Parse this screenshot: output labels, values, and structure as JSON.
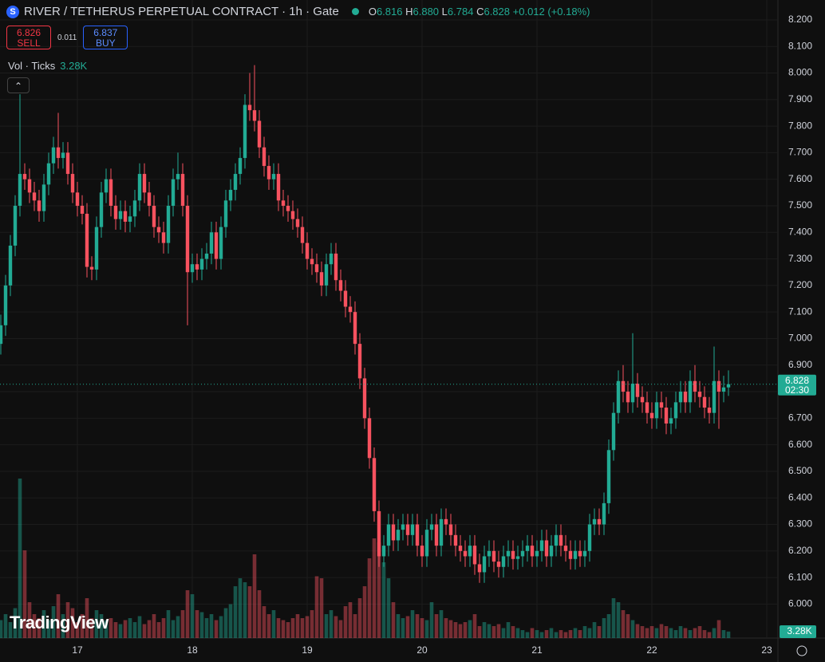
{
  "header": {
    "symbol_icon": "S",
    "symbol": "RIVER / TETHERUS PERPETUAL CONTRACT · 1h · Gate",
    "o_label": "O",
    "h_label": "H",
    "high": "6.880",
    "l_label": "L",
    "c_label": "C",
    "change": "+0.012 (+0.18%)",
    "sell_price": "6.826",
    "sell": "SELL",
    "spread": "0.011",
    "buy_price": "6.837",
    "buy": "BUY",
    "vol_title": "Vol · Ticks",
    "countdown": "02:30",
    "logo": "TradingView"
  },
  "chart_data": {
    "type": "candlestick",
    "categories": [
      null,
      null,
      null,
      null,
      null,
      null,
      null,
      null,
      null,
      null,
      null,
      null,
      null,
      null,
      null,
      null,
      "17",
      null,
      null,
      null,
      null,
      null,
      null,
      null,
      null,
      null,
      null,
      null,
      null,
      null,
      null,
      null,
      null,
      null,
      null,
      null,
      null,
      null,
      null,
      null,
      "18",
      null,
      null,
      null,
      null,
      null,
      null,
      null,
      null,
      null,
      null,
      null,
      null,
      null,
      null,
      null,
      null,
      null,
      null,
      null,
      null,
      null,
      null,
      null,
      "19",
      null,
      null,
      null,
      null,
      null,
      null,
      null,
      null,
      null,
      null,
      null,
      null,
      null,
      null,
      null,
      null,
      null,
      null,
      null,
      null,
      null,
      null,
      null,
      "20",
      null,
      null,
      null,
      null,
      null,
      null,
      null,
      null,
      null,
      null,
      null,
      null,
      null,
      null,
      null,
      null,
      null,
      null,
      null,
      null,
      null,
      null,
      null,
      "21",
      null,
      null,
      null,
      null,
      null,
      null,
      null,
      null,
      null,
      null,
      null,
      null,
      null,
      null,
      null,
      null,
      null,
      null,
      null,
      null,
      null,
      null,
      null,
      "22",
      null,
      null,
      null,
      null,
      null,
      null,
      null,
      null,
      null,
      null,
      null,
      null,
      null,
      null,
      null,
      null,
      null,
      null,
      null,
      null,
      null,
      null,
      null,
      "23"
    ],
    "open": [
      6.98,
      7.05,
      7.2,
      7.35,
      7.5,
      7.62,
      7.6,
      7.55,
      7.52,
      7.48,
      7.58,
      7.66,
      7.72,
      7.68,
      7.7,
      7.62,
      7.55,
      7.5,
      7.47,
      7.27,
      7.26,
      7.42,
      7.55,
      7.6,
      7.5,
      7.45,
      7.48,
      7.44,
      7.46,
      7.52,
      7.62,
      7.55,
      7.5,
      7.42,
      7.4,
      7.36,
      7.5,
      7.6,
      7.62,
      7.5,
      7.25,
      7.28,
      7.26,
      7.3,
      7.32,
      7.4,
      7.3,
      7.42,
      7.52,
      7.56,
      7.62,
      7.68,
      7.88,
      7.86,
      7.82,
      7.72,
      7.65,
      7.6,
      7.62,
      7.52,
      7.5,
      7.48,
      7.45,
      7.42,
      7.36,
      7.3,
      7.28,
      7.25,
      7.2,
      7.28,
      7.32,
      7.22,
      7.18,
      7.12,
      7.1,
      6.98,
      6.85,
      6.7,
      6.55,
      6.35,
      6.18,
      6.22,
      6.3,
      6.24,
      6.28,
      6.3,
      6.26,
      6.3,
      6.22,
      6.18,
      6.28,
      6.3,
      6.22,
      6.32,
      6.3,
      6.26,
      6.22,
      6.2,
      6.18,
      6.22,
      6.15,
      6.12,
      6.18,
      6.2,
      6.16,
      6.14,
      6.18,
      6.2,
      6.17,
      6.18,
      6.2,
      6.22,
      6.18,
      6.2,
      6.24,
      6.18,
      6.22,
      6.26,
      6.22,
      6.2,
      6.17,
      6.2,
      6.18,
      6.2,
      6.3,
      6.32,
      6.3,
      6.38,
      6.58,
      6.72,
      6.84,
      6.8,
      6.76,
      6.83,
      6.78,
      6.76,
      6.72,
      6.7,
      6.76,
      6.74,
      6.68,
      6.7,
      6.76,
      6.8,
      6.76,
      6.84,
      6.8,
      6.78,
      6.74,
      6.72,
      6.84,
      6.8,
      6.816,
      null,
      null,
      null,
      null,
      null,
      null,
      null,
      null
    ],
    "high": [
      7.09,
      7.24,
      7.39,
      7.54,
      7.92,
      7.66,
      7.64,
      7.59,
      7.56,
      7.62,
      7.7,
      7.76,
      7.85,
      7.74,
      7.74,
      7.66,
      7.59,
      7.54,
      7.51,
      7.31,
      7.46,
      7.59,
      7.64,
      7.64,
      7.54,
      7.52,
      7.52,
      7.5,
      7.56,
      7.66,
      7.66,
      7.59,
      7.54,
      7.46,
      7.44,
      7.54,
      7.64,
      7.7,
      7.66,
      7.54,
      7.32,
      7.32,
      7.34,
      7.36,
      7.44,
      7.44,
      7.46,
      7.56,
      7.6,
      7.66,
      7.72,
      7.92,
      8.0,
      8.03,
      7.86,
      7.76,
      7.69,
      7.66,
      7.66,
      7.56,
      7.54,
      7.52,
      7.49,
      7.46,
      7.4,
      7.34,
      7.32,
      7.29,
      7.32,
      7.36,
      7.36,
      7.26,
      7.22,
      7.16,
      7.14,
      7.02,
      6.89,
      6.74,
      6.59,
      6.39,
      6.26,
      6.34,
      6.34,
      6.32,
      6.34,
      6.34,
      6.34,
      6.34,
      6.26,
      6.32,
      6.34,
      6.34,
      6.36,
      6.36,
      6.34,
      6.3,
      6.26,
      6.24,
      6.26,
      6.26,
      6.19,
      6.22,
      6.24,
      6.24,
      6.2,
      6.22,
      6.24,
      6.24,
      6.22,
      6.24,
      6.26,
      6.26,
      6.24,
      6.28,
      6.28,
      6.26,
      6.3,
      6.3,
      6.26,
      6.24,
      6.24,
      6.24,
      6.24,
      6.34,
      6.36,
      6.36,
      6.42,
      6.62,
      6.76,
      6.88,
      6.9,
      6.84,
      7.02,
      6.87,
      6.82,
      6.8,
      6.76,
      6.8,
      6.8,
      6.78,
      6.74,
      6.8,
      6.84,
      6.84,
      6.88,
      6.9,
      6.84,
      6.82,
      6.78,
      6.97,
      6.88,
      6.86,
      6.88,
      null,
      null,
      null,
      null,
      null,
      null,
      null,
      null
    ],
    "low": [
      6.94,
      7.01,
      7.16,
      7.31,
      7.46,
      7.56,
      7.51,
      7.48,
      7.44,
      7.44,
      7.54,
      7.62,
      7.64,
      7.64,
      7.58,
      7.51,
      7.46,
      7.43,
      7.23,
      7.22,
      7.22,
      7.38,
      7.51,
      7.46,
      7.41,
      7.41,
      7.4,
      7.4,
      7.42,
      7.48,
      7.51,
      7.46,
      7.38,
      7.36,
      7.32,
      7.32,
      7.46,
      7.56,
      7.46,
      7.05,
      7.21,
      7.22,
      7.22,
      7.26,
      7.28,
      7.26,
      7.26,
      7.38,
      7.48,
      7.52,
      7.58,
      7.64,
      7.82,
      7.78,
      7.68,
      7.61,
      7.56,
      7.56,
      7.48,
      7.46,
      7.44,
      7.41,
      7.38,
      7.32,
      7.26,
      7.24,
      7.21,
      7.16,
      7.16,
      7.24,
      7.18,
      7.14,
      7.08,
      7.06,
      6.94,
      6.81,
      6.66,
      6.51,
      6.31,
      6.14,
      6.14,
      6.18,
      6.2,
      6.2,
      6.24,
      6.22,
      6.22,
      6.18,
      6.14,
      6.14,
      6.24,
      6.18,
      6.18,
      6.26,
      6.22,
      6.18,
      6.16,
      6.14,
      6.14,
      6.11,
      6.08,
      6.08,
      6.14,
      6.12,
      6.1,
      6.1,
      6.14,
      6.13,
      6.13,
      6.14,
      6.16,
      6.14,
      6.14,
      6.16,
      6.14,
      6.14,
      6.18,
      6.18,
      6.16,
      6.13,
      6.13,
      6.14,
      6.14,
      6.16,
      6.26,
      6.26,
      6.26,
      6.34,
      6.54,
      6.68,
      6.76,
      6.72,
      6.72,
      6.74,
      6.72,
      6.68,
      6.66,
      6.66,
      6.7,
      6.64,
      6.64,
      6.66,
      6.72,
      6.72,
      6.72,
      6.76,
      6.74,
      6.7,
      6.68,
      6.68,
      6.66,
      6.76,
      6.784,
      null,
      null,
      null,
      null,
      null,
      null,
      null,
      null
    ],
    "close": [
      7.05,
      7.2,
      7.35,
      7.5,
      7.62,
      7.6,
      7.55,
      7.52,
      7.48,
      7.58,
      7.66,
      7.72,
      7.68,
      7.7,
      7.62,
      7.55,
      7.5,
      7.47,
      7.27,
      7.26,
      7.42,
      7.55,
      7.6,
      7.5,
      7.45,
      7.48,
      7.44,
      7.46,
      7.52,
      7.62,
      7.55,
      7.5,
      7.42,
      7.4,
      7.36,
      7.5,
      7.6,
      7.62,
      7.5,
      7.25,
      7.28,
      7.26,
      7.3,
      7.32,
      7.4,
      7.3,
      7.42,
      7.52,
      7.56,
      7.62,
      7.68,
      7.88,
      7.86,
      7.82,
      7.72,
      7.65,
      7.6,
      7.62,
      7.52,
      7.5,
      7.48,
      7.45,
      7.42,
      7.36,
      7.3,
      7.28,
      7.25,
      7.2,
      7.28,
      7.32,
      7.22,
      7.18,
      7.12,
      7.1,
      6.98,
      6.85,
      6.7,
      6.55,
      6.35,
      6.18,
      6.22,
      6.3,
      6.24,
      6.28,
      6.3,
      6.26,
      6.3,
      6.22,
      6.18,
      6.28,
      6.3,
      6.22,
      6.32,
      6.3,
      6.26,
      6.22,
      6.2,
      6.18,
      6.22,
      6.15,
      6.12,
      6.18,
      6.2,
      6.16,
      6.14,
      6.18,
      6.2,
      6.17,
      6.18,
      6.2,
      6.22,
      6.18,
      6.2,
      6.24,
      6.18,
      6.22,
      6.26,
      6.22,
      6.2,
      6.17,
      6.2,
      6.18,
      6.2,
      6.3,
      6.32,
      6.3,
      6.38,
      6.58,
      6.72,
      6.84,
      6.8,
      6.76,
      6.83,
      6.78,
      6.76,
      6.72,
      6.7,
      6.76,
      6.74,
      6.68,
      6.7,
      6.76,
      6.8,
      6.76,
      6.84,
      6.8,
      6.78,
      6.74,
      6.72,
      6.84,
      6.8,
      6.816,
      6.828,
      null,
      null,
      null,
      null,
      null,
      null,
      null,
      null
    ],
    "volume": {
      "values": [
        9000,
        12000,
        8000,
        15000,
        80000,
        44000,
        18000,
        12000,
        10000,
        14000,
        9000,
        16000,
        22000,
        12000,
        18000,
        15000,
        8000,
        12000,
        20000,
        10000,
        14000,
        12000,
        9000,
        10000,
        8000,
        7000,
        9000,
        10000,
        8000,
        11000,
        7000,
        9000,
        12000,
        8000,
        10000,
        14000,
        9000,
        11000,
        14000,
        24000,
        22000,
        14000,
        13000,
        10000,
        12000,
        9000,
        11000,
        15000,
        17000,
        26000,
        30000,
        28000,
        26000,
        42000,
        24000,
        16000,
        12000,
        14000,
        10000,
        9000,
        8000,
        10000,
        12000,
        10000,
        11000,
        14000,
        31000,
        30000,
        12000,
        14000,
        11000,
        9000,
        16000,
        18000,
        12000,
        20000,
        26000,
        40000,
        50000,
        48000,
        38000,
        30000,
        18000,
        12000,
        10000,
        11000,
        14000,
        12000,
        10000,
        9000,
        18000,
        12000,
        14000,
        10000,
        9000,
        8000,
        7000,
        8000,
        9000,
        12000,
        6000,
        8000,
        7000,
        6000,
        7000,
        5000,
        8000,
        6000,
        5000,
        4000,
        3000,
        5000,
        4000,
        3000,
        4000,
        5000,
        3000,
        4000,
        3000,
        4000,
        5000,
        4000,
        6000,
        5000,
        8000,
        6000,
        10000,
        12000,
        20000,
        18000,
        14000,
        12000,
        9000,
        7000,
        6000,
        5000,
        6000,
        5000,
        7000,
        6000,
        5000,
        4000,
        6000,
        5000,
        4000,
        5000,
        6000,
        4000,
        3000,
        5000,
        9000,
        4000,
        3280,
        null,
        null,
        null,
        null,
        null,
        null,
        null,
        null
      ],
      "value_labels": [
        null,
        null,
        null,
        null,
        null,
        null,
        null,
        null,
        null,
        null,
        null,
        null,
        null,
        null,
        null,
        null,
        null,
        null,
        null,
        null,
        null,
        null,
        null,
        null,
        null,
        null,
        null,
        null,
        null,
        null,
        null,
        null,
        null,
        null,
        null,
        null,
        null,
        null,
        null,
        null,
        null,
        null,
        null,
        null,
        null,
        null,
        null,
        null,
        null,
        null,
        null,
        null,
        null,
        null,
        null,
        null,
        null,
        null,
        null,
        null,
        null,
        null,
        null,
        null,
        null,
        null,
        null,
        null,
        null,
        null,
        null,
        null,
        null,
        null,
        null,
        null,
        null,
        null,
        null,
        null,
        null,
        null,
        null,
        null,
        null,
        null,
        null,
        null,
        null,
        null,
        null,
        null,
        null,
        null,
        null,
        null,
        null,
        null,
        null,
        null,
        null,
        null,
        null,
        null,
        null,
        null,
        null,
        null,
        null,
        null,
        null,
        null,
        null,
        null,
        null,
        null,
        null,
        null,
        null,
        null,
        null,
        null,
        null,
        null,
        null,
        null,
        null,
        null,
        null,
        null,
        null,
        null,
        null,
        null,
        null,
        null,
        null,
        null,
        null,
        null,
        null,
        null,
        null,
        null,
        null,
        null,
        null,
        null,
        null,
        null,
        null,
        null,
        "3.28K",
        null,
        null,
        null,
        null,
        null,
        null,
        null,
        null
      ]
    },
    "up_color": "#22ab94",
    "down_color": "#f7525f",
    "ylim": [
      5.872,
      8.275
    ],
    "yticks": [
      {
        "value": 6.0,
        "label": "6.000"
      },
      {
        "value": 6.1,
        "label": "6.100"
      },
      {
        "value": 6.2,
        "label": "6.200"
      },
      {
        "value": 6.3,
        "label": "6.300"
      },
      {
        "value": 6.4,
        "label": "6.400"
      },
      {
        "value": 6.5,
        "label": "6.500"
      },
      {
        "value": 6.6,
        "label": "6.600"
      },
      {
        "value": 6.7,
        "label": "6.700"
      },
      {
        "value": 6.8,
        "label": "6.800"
      },
      {
        "value": 6.9,
        "label": "6.900"
      },
      {
        "value": 7.0,
        "label": "7.000"
      },
      {
        "value": 7.1,
        "label": "7.100"
      },
      {
        "value": 7.2,
        "label": "7.200"
      },
      {
        "value": 7.3,
        "label": "7.300"
      },
      {
        "value": 7.4,
        "label": "7.400"
      },
      {
        "value": 7.5,
        "label": "7.500"
      },
      {
        "value": 7.6,
        "label": "7.600"
      },
      {
        "value": 7.7,
        "label": "7.700"
      },
      {
        "value": 7.8,
        "label": "7.800"
      },
      {
        "value": 7.9,
        "label": "7.900"
      },
      {
        "value": 8.0,
        "label": "8.000"
      },
      {
        "value": 8.1,
        "label": "8.100"
      },
      {
        "value": 8.2,
        "label": "8.200"
      }
    ],
    "grid": true
  }
}
